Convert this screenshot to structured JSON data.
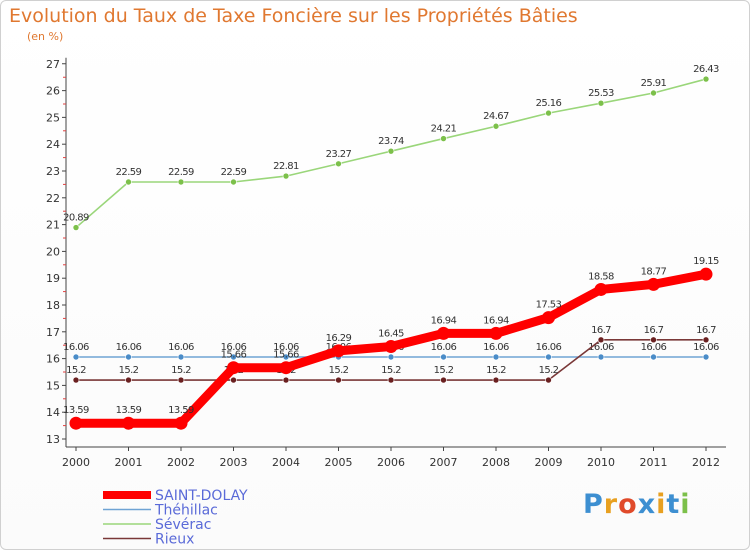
{
  "title": "Evolution du Taux de Taxe Foncière sur les Propriétés Bâties",
  "subtitle": "(en %)",
  "brand": {
    "text": "Proxiti",
    "letters": [
      "P",
      "r",
      "o",
      "x",
      "i",
      "t",
      "i"
    ],
    "colors": [
      "#3d8fd1",
      "#e8a020",
      "#e04a2a",
      "#3d8fd1",
      "#e8a020",
      "#3d8fd1",
      "#7cc04a"
    ]
  },
  "chart_data": {
    "type": "line",
    "x": [
      "2000",
      "2001",
      "2002",
      "2003",
      "2004",
      "2005",
      "2006",
      "2007",
      "2008",
      "2009",
      "2010",
      "2011",
      "2012"
    ],
    "ylim": [
      13,
      27
    ],
    "yticks": [
      13,
      14,
      15,
      16,
      17,
      18,
      19,
      20,
      21,
      22,
      23,
      24,
      25,
      26,
      27
    ],
    "grid": false,
    "legend": "bottom-left",
    "series": [
      {
        "name": "Sévérac",
        "color": "#9ad67a",
        "marker": "#7cc04a",
        "values": [
          20.89,
          22.59,
          22.59,
          22.59,
          22.81,
          23.27,
          23.74,
          24.21,
          24.67,
          25.16,
          25.53,
          25.91,
          26.43
        ],
        "labels": [
          "20.89",
          "22.59",
          "22.59",
          "22.59",
          "22.81",
          "23.27",
          "23.74",
          "24.21",
          "24.67",
          "25.16",
          "25.53",
          "25.91",
          "26.43"
        ]
      },
      {
        "name": "Théhillac",
        "color": "#6ea3d4",
        "marker": "#4a8cc8",
        "values": [
          16.06,
          16.06,
          16.06,
          16.06,
          16.06,
          16.06,
          16.06,
          16.06,
          16.06,
          16.06,
          16.06,
          16.06,
          16.06
        ],
        "labels": [
          "16.06",
          "16.06",
          "16.06",
          "16.06",
          "16.06",
          "16.06",
          "16.06",
          "16.06",
          "16.06",
          "16.06",
          "16.06",
          "16.06",
          "16.06"
        ]
      },
      {
        "name": "Rieux",
        "color": "#7a3838",
        "marker": "#6a2020",
        "values": [
          15.2,
          15.2,
          15.2,
          15.2,
          15.2,
          15.2,
          15.2,
          15.2,
          15.2,
          15.2,
          16.7,
          16.7,
          16.7
        ],
        "labels": [
          "15.2",
          "15.2",
          "15.2",
          "15.2",
          "15.2",
          "15.2",
          "15.2",
          "15.2",
          "15.2",
          "15.2",
          "16.7",
          "16.7",
          "16.7"
        ]
      },
      {
        "name": "SAINT-DOLAY",
        "color": "#ff0000",
        "marker": "#ff0000",
        "values": [
          13.59,
          13.59,
          13.59,
          15.66,
          15.66,
          16.29,
          16.45,
          16.94,
          16.94,
          17.53,
          18.58,
          18.77,
          19.15
        ],
        "labels": [
          "13.59",
          "13.59",
          "13.59",
          "15.66",
          "15.66",
          "16.29",
          "16.45",
          "16.94",
          "16.94",
          "17.53",
          "18.58",
          "18.77",
          "19.15"
        ]
      }
    ],
    "legend_order": [
      "SAINT-DOLAY",
      "Théhillac",
      "Sévérac",
      "Rieux"
    ]
  }
}
